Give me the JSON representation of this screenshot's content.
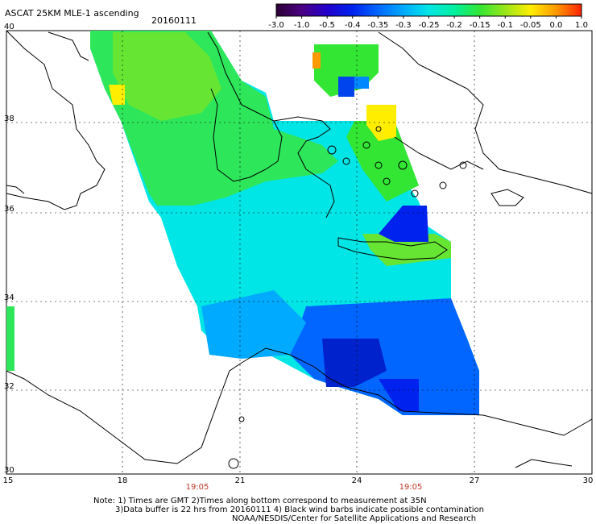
{
  "header": {
    "title": "ASCAT 25KM MLE-1 ascending",
    "date": "20160111"
  },
  "colorbar": {
    "ticks": [
      "-3.0",
      "-1.0",
      "-0.5",
      "-0.4",
      "-0.35",
      "-0.3",
      "-0.25",
      "-0.2",
      "-0.15",
      "-0.1",
      "-0.05",
      "0.0",
      "1.0"
    ],
    "colors": [
      "#2a0033",
      "#4b0082",
      "#2200cc",
      "#0022ee",
      "#0066ff",
      "#00aaff",
      "#00e6e6",
      "#00f0a0",
      "#33e633",
      "#99e61a",
      "#ffee00",
      "#ff9900",
      "#ff2200"
    ]
  },
  "axes": {
    "lat_labels": [
      "40",
      "38",
      "36",
      "34",
      "32",
      "30"
    ],
    "lon_labels": [
      "15",
      "18",
      "21",
      "24",
      "27",
      "30"
    ]
  },
  "times": [
    "19:05",
    "19:05"
  ],
  "notes": {
    "line1": "Note: 1) Times are GMT 2)Times along bottom correspond to measurement at 35N",
    "line2": "3)Data buffer is 22 hrs from 20160111 4) Black wind barbs indicate possible contamination",
    "line3": "NOAA/NESDIS/Center for Satellite Applications and Research"
  }
}
